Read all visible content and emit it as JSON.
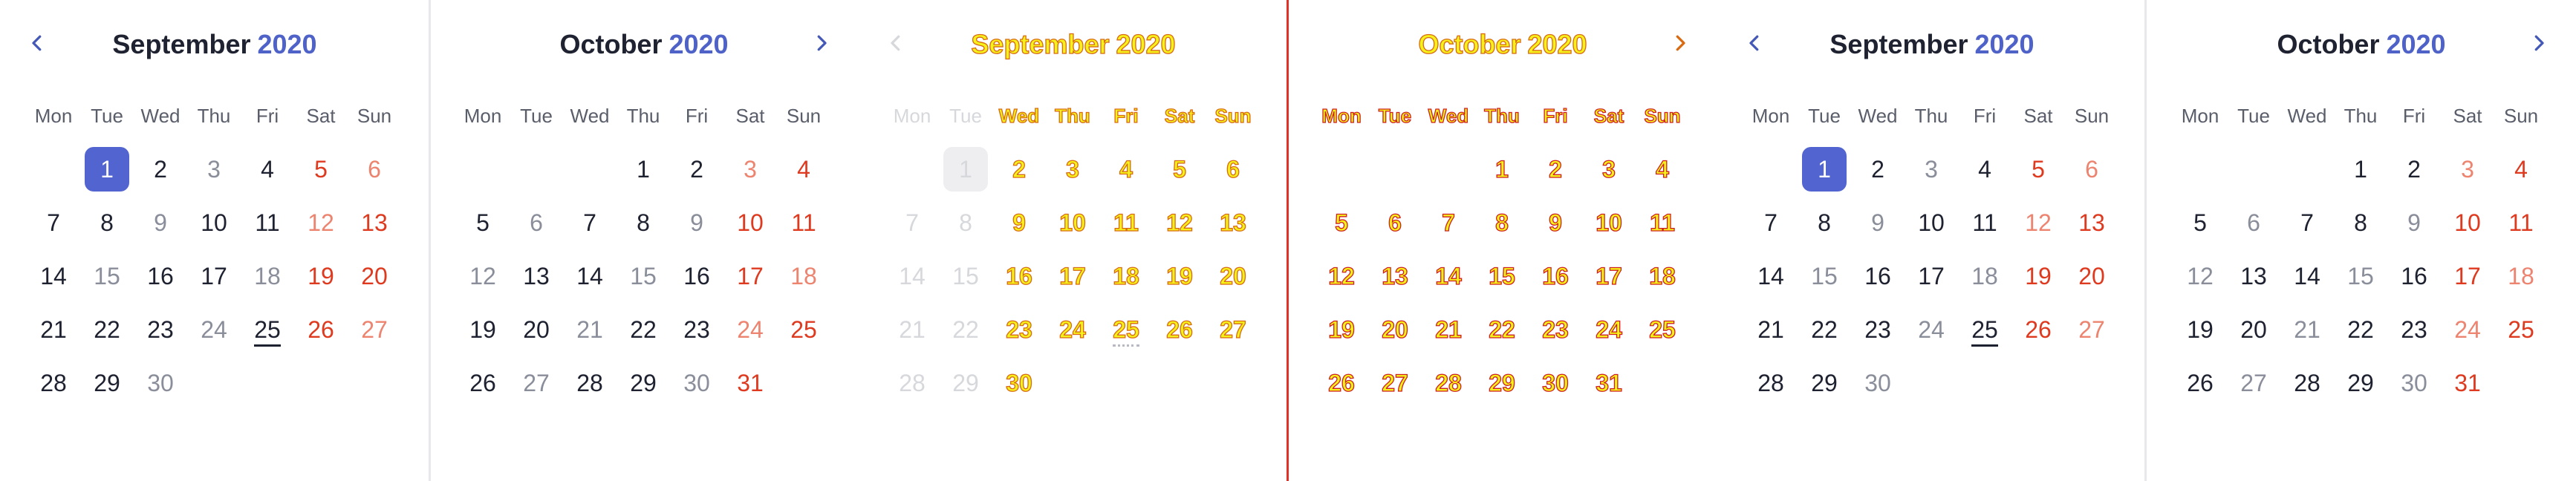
{
  "colors": {
    "title": "#1f2230",
    "year": "#4e62c8",
    "nav_arrow": "#4458b8",
    "day_weekday": "#1e2130",
    "day_muted": "#8a8e9a",
    "weekday_header": "#5a5e6a",
    "holiday": "#de3a1f",
    "holiday_muted": "#ec8470",
    "selected_bg": "#5164d0",
    "divider": "#e8e8ec",
    "red_divider": "#e23228",
    "faded": "#d7d8dc",
    "faded_selected_bg": "#eeeef0",
    "yellow": "#f5f11a",
    "yellow_stroke": "#d96a12"
  },
  "weekdays": [
    "Mon",
    "Tue",
    "Wed",
    "Thu",
    "Fri",
    "Sat",
    "Sun"
  ],
  "calendars": [
    {
      "style": "normal",
      "month": "September",
      "year": "2020",
      "nav_prev": "chevron-left-icon",
      "nav_next": null,
      "first_weekday_col": 1,
      "days": 30,
      "selected_day": 1,
      "today_day": 25,
      "muted_days": [
        3,
        9,
        15,
        18,
        24,
        30
      ],
      "holiday_days": [
        5,
        13,
        19,
        20,
        26
      ],
      "holiday_muted_days": [
        6,
        12,
        27
      ]
    },
    {
      "style": "normal",
      "month": "October",
      "year": "2020",
      "nav_prev": null,
      "nav_next": "chevron-right-icon",
      "first_weekday_col": 3,
      "days": 31,
      "selected_day": null,
      "today_day": null,
      "muted_days": [
        6,
        9,
        12,
        15,
        21,
        27,
        30
      ],
      "holiday_days": [
        4,
        10,
        11,
        17,
        25,
        31
      ],
      "holiday_muted_days": [
        3,
        18,
        24
      ]
    },
    {
      "style": "faded",
      "month": "September",
      "year": "2020",
      "nav_prev": "chevron-left-icon",
      "nav_next": null,
      "first_weekday_col": 1,
      "days": 30,
      "selected_day": 1,
      "today_day": 25,
      "faded_days": [
        1,
        7,
        8,
        14,
        15,
        21,
        22,
        28,
        29
      ],
      "faded_weekdays": [
        "Mon",
        "Tue"
      ],
      "muted_days": [],
      "holiday_days": [],
      "holiday_muted_days": []
    },
    {
      "style": "outlined",
      "month": "October",
      "year": "2020",
      "nav_prev": null,
      "nav_next": "chevron-right-icon",
      "first_weekday_col": 3,
      "days": 31,
      "selected_day": null,
      "today_day": null,
      "muted_days": [],
      "holiday_days": [],
      "holiday_muted_days": []
    },
    {
      "style": "normal",
      "month": "September",
      "year": "2020",
      "nav_prev": "chevron-left-icon",
      "nav_next": null,
      "first_weekday_col": 1,
      "days": 30,
      "selected_day": 1,
      "today_day": 25,
      "muted_days": [
        3,
        9,
        15,
        18,
        24,
        30
      ],
      "holiday_days": [
        5,
        13,
        19,
        20,
        26
      ],
      "holiday_muted_days": [
        6,
        12,
        27
      ]
    },
    {
      "style": "normal",
      "month": "October",
      "year": "2020",
      "nav_prev": null,
      "nav_next": "chevron-right-icon",
      "first_weekday_col": 3,
      "days": 31,
      "selected_day": null,
      "today_day": null,
      "muted_days": [
        6,
        9,
        12,
        15,
        21,
        27,
        30
      ],
      "holiday_days": [
        4,
        10,
        11,
        17,
        25,
        31
      ],
      "holiday_muted_days": [
        3,
        18,
        24
      ]
    }
  ]
}
